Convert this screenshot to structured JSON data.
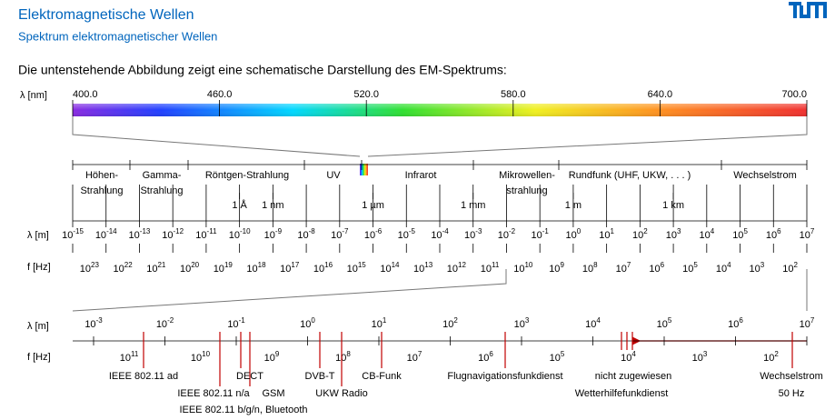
{
  "header": {
    "title": "Elektromagnetische Wellen",
    "subtitle": "Spektrum elektromagnetischer Wellen"
  },
  "intro": "Die untenstehende Abbildung zeigt eine schematische Darstellung des EM-Spektrums:",
  "visible": {
    "axis_label": "λ [nm]",
    "ticks": [
      "400.0",
      "460.0",
      "520.0",
      "580.0",
      "640.0",
      "700.0"
    ]
  },
  "bands": [
    {
      "lines": [
        "Höhen-",
        "Strahlung"
      ]
    },
    {
      "lines": [
        "Gamma-",
        "Strahlung"
      ]
    },
    {
      "lines": [
        "Röntgen-Strahlung"
      ]
    },
    {
      "lines": [
        "UV"
      ]
    },
    {
      "lines": [
        "Infrarot"
      ]
    },
    {
      "lines": [
        "Mikrowellen-",
        "strahlung"
      ]
    },
    {
      "lines": [
        "Rundfunk (UHF, UKW, . . . )"
      ]
    },
    {
      "lines": [
        "Wechselstrom"
      ]
    }
  ],
  "base": "10",
  "overview": {
    "wavelength_label": "λ [m]",
    "frequency_label": "f [Hz]",
    "wavelength_exponents": [
      -15,
      -14,
      -13,
      -12,
      -11,
      -10,
      -9,
      -8,
      -7,
      -6,
      -5,
      -4,
      -3,
      -2,
      -1,
      0,
      1,
      2,
      3,
      4,
      5,
      6,
      7
    ],
    "frequency_exponents": [
      23,
      22,
      21,
      20,
      19,
      18,
      17,
      16,
      15,
      14,
      13,
      12,
      11,
      10,
      9,
      8,
      7,
      6,
      5,
      4,
      3,
      2
    ],
    "markers": [
      "1 Å",
      "1 nm",
      "1 µm",
      "1 mm",
      "1 m",
      "1 km"
    ]
  },
  "detail": {
    "wavelength_label": "λ [m]",
    "frequency_label": "f [Hz]",
    "wavelength_exponents": [
      -3,
      -2,
      -1,
      0,
      1,
      2,
      3,
      4,
      5,
      6,
      7
    ],
    "frequency_exponents": [
      11,
      10,
      9,
      8,
      7,
      6,
      5,
      4,
      3,
      2
    ],
    "services": [
      "IEEE 802.11 ad",
      "DECT",
      "IEEE 802.11 n/a",
      "GSM",
      "IEEE 802.11 b/g/n, Bluetooth",
      "DVB-T",
      "UKW Radio",
      "CB-Funk",
      "Flugnavigationsfunkdienst",
      "nicht zugewiesen",
      "Wetterhilfefunkdienst",
      "Wechselstrom",
      "50 Hz"
    ]
  }
}
